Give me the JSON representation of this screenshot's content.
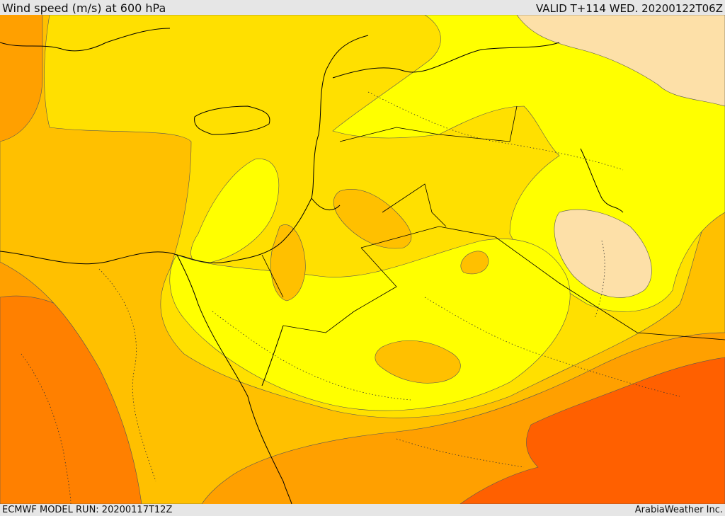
{
  "header": {
    "title": "Wind speed (m/s) at 600 hPa",
    "valid_time": "VALID T+114 WED. 20200122T06Z"
  },
  "footer": {
    "model_run": "ECMWF MODEL RUN: 20200117T12Z",
    "credit": "ArabiaWeather Inc."
  },
  "map": {
    "field": "wind speed",
    "level_hPa": 600,
    "colors": {
      "band_1": "#fde0a8",
      "band_2": "#ffff00",
      "band_3": "#ffe000",
      "band_4": "#ffc000",
      "band_5": "#ffa000",
      "band_6": "#ff8000",
      "band_7": "#ff6000"
    }
  }
}
